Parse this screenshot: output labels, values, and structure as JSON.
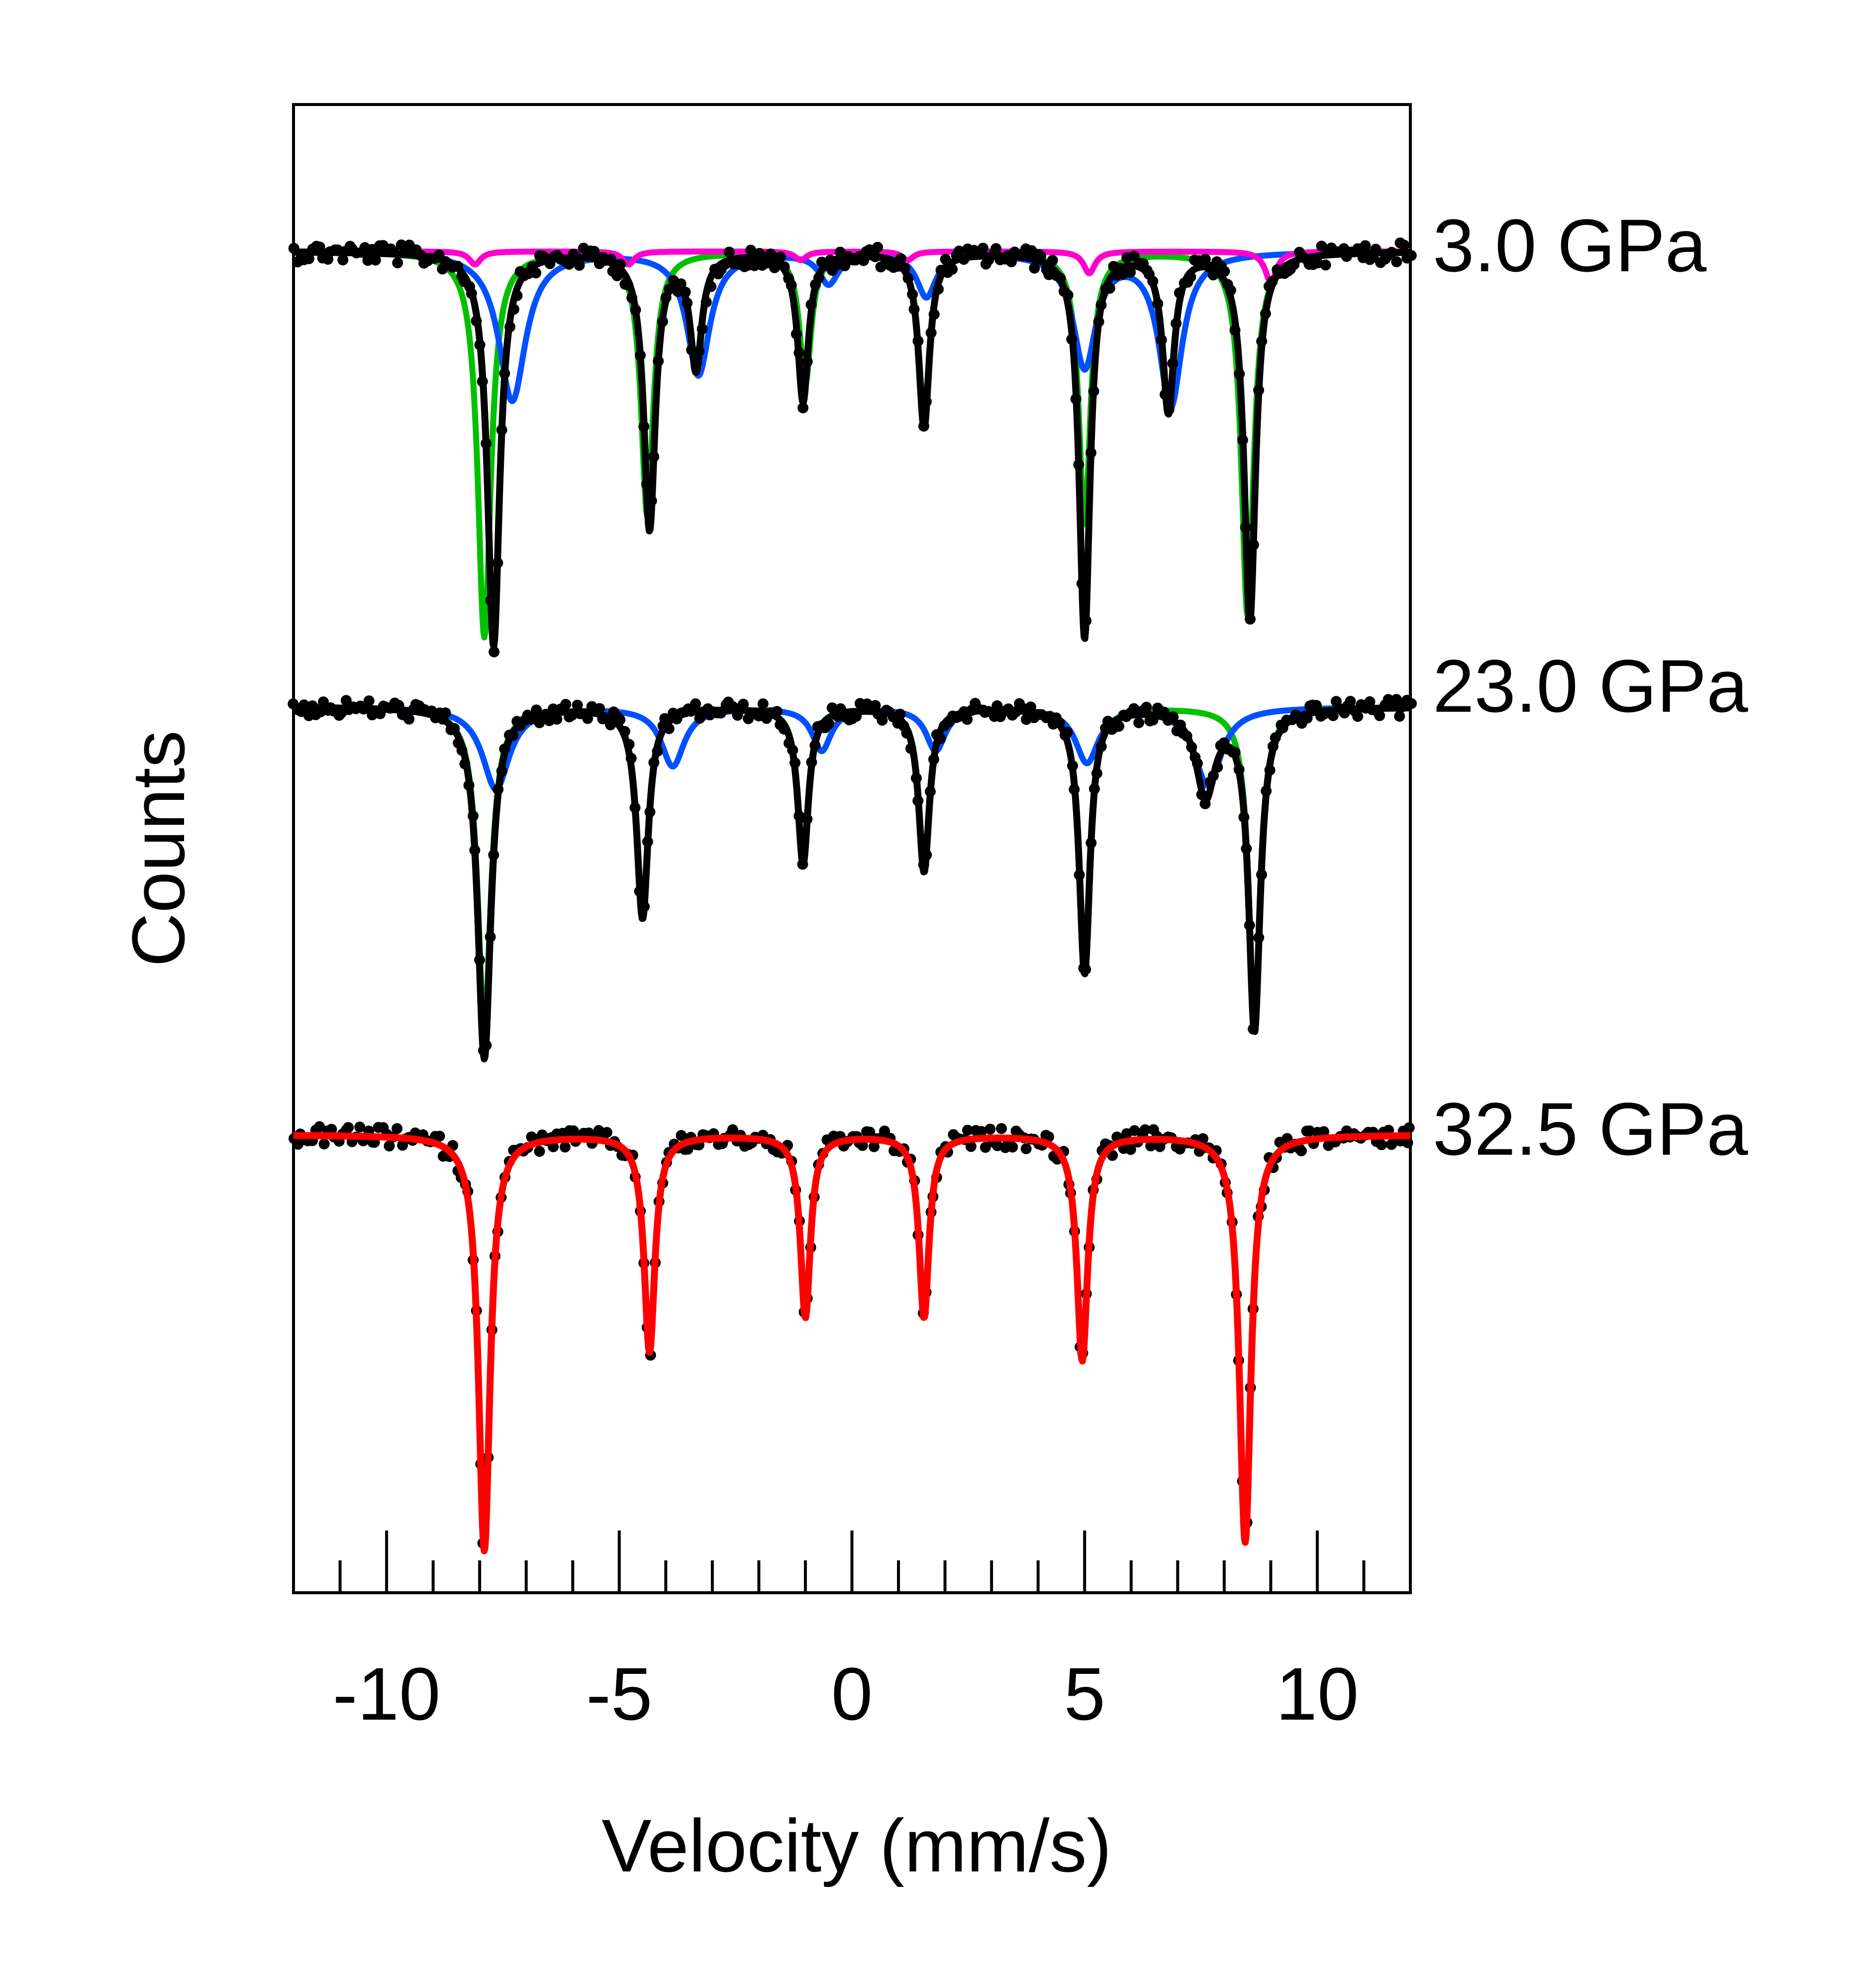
{
  "chart_data": {
    "type": "line",
    "xlabel": "Velocity (mm/s)",
    "ylabel": "Counts",
    "xlim": [
      -12,
      12
    ],
    "x_ticks": [
      -10,
      -5,
      0,
      5,
      10
    ],
    "x_tick_labels": [
      "-10",
      "-5",
      "0",
      "5",
      "10"
    ],
    "x_minor_tick_step": 1,
    "grid": false,
    "legend": "none",
    "y_tick_labels": "none",
    "panels": [
      {
        "label": "3.0 GPa",
        "baseline": 1.0,
        "data_color": "#000000",
        "total_fit": {
          "color": "#000000",
          "lines": [
            {
              "position": -7.7,
              "depth": 0.9,
              "width": 0.32
            },
            {
              "position": -4.35,
              "depth": 0.63,
              "width": 0.3
            },
            {
              "position": -1.05,
              "depth": 0.34,
              "width": 0.28
            },
            {
              "position": 1.55,
              "depth": 0.4,
              "width": 0.28
            },
            {
              "position": 5.0,
              "depth": 0.88,
              "width": 0.28
            },
            {
              "position": 8.55,
              "depth": 0.84,
              "width": 0.3
            },
            {
              "position": -3.35,
              "depth": 0.26,
              "width": 0.3
            },
            {
              "position": 6.8,
              "depth": 0.36,
              "width": 0.3
            }
          ]
        },
        "components": [
          {
            "color": "#00c000",
            "lines": [
              {
                "position": -7.9,
                "depth": 0.88,
                "width": 0.34
              },
              {
                "position": -4.4,
                "depth": 0.6,
                "width": 0.32
              },
              {
                "position": -1.0,
                "depth": 0.3,
                "width": 0.3
              },
              {
                "position": 1.55,
                "depth": 0.36,
                "width": 0.3
              },
              {
                "position": 5.0,
                "depth": 0.62,
                "width": 0.3
              },
              {
                "position": 8.5,
                "depth": 0.83,
                "width": 0.32
              }
            ]
          },
          {
            "color": "#0050ff",
            "lines": [
              {
                "position": -7.3,
                "depth": 0.34,
                "width": 0.7
              },
              {
                "position": -3.3,
                "depth": 0.28,
                "width": 0.6
              },
              {
                "position": -0.5,
                "depth": 0.07,
                "width": 0.5
              },
              {
                "position": 1.6,
                "depth": 0.1,
                "width": 0.5
              },
              {
                "position": 5.0,
                "depth": 0.26,
                "width": 0.6
              },
              {
                "position": 6.85,
                "depth": 0.35,
                "width": 0.6
              }
            ]
          },
          {
            "color": "#ff00cc",
            "lines": [
              {
                "position": -8.1,
                "depth": 0.03,
                "width": 0.3
              },
              {
                "position": -4.8,
                "depth": 0.03,
                "width": 0.3
              },
              {
                "position": -1.1,
                "depth": 0.02,
                "width": 0.3
              },
              {
                "position": 1.2,
                "depth": 0.02,
                "width": 0.3
              },
              {
                "position": 5.1,
                "depth": 0.05,
                "width": 0.3
              },
              {
                "position": 9.0,
                "depth": 0.07,
                "width": 0.3
              }
            ]
          }
        ]
      },
      {
        "label": "23.0 GPa",
        "baseline": 1.0,
        "data_color": "#000000",
        "total_fit": {
          "color": "#000000",
          "lines": [
            {
              "position": -7.9,
              "depth": 0.9,
              "width": 0.34
            },
            {
              "position": -4.5,
              "depth": 0.54,
              "width": 0.3
            },
            {
              "position": -1.05,
              "depth": 0.4,
              "width": 0.28
            },
            {
              "position": 1.55,
              "depth": 0.42,
              "width": 0.28
            },
            {
              "position": 5.0,
              "depth": 0.68,
              "width": 0.28
            },
            {
              "position": 8.65,
              "depth": 0.82,
              "width": 0.3
            },
            {
              "position": 7.6,
              "depth": 0.22,
              "width": 0.5
            }
          ]
        },
        "components": [
          {
            "color": "#00c000",
            "lines": [
              {
                "position": -7.9,
                "depth": 0.82,
                "width": 0.34
              },
              {
                "position": -4.5,
                "depth": 0.52,
                "width": 0.3
              },
              {
                "position": -1.05,
                "depth": 0.37,
                "width": 0.28
              },
              {
                "position": 1.55,
                "depth": 0.4,
                "width": 0.28
              },
              {
                "position": 5.0,
                "depth": 0.66,
                "width": 0.28
              },
              {
                "position": 8.65,
                "depth": 0.8,
                "width": 0.3
              }
            ]
          },
          {
            "color": "#0050ff",
            "lines": [
              {
                "position": -7.65,
                "depth": 0.21,
                "width": 0.7
              },
              {
                "position": -3.85,
                "depth": 0.15,
                "width": 0.6
              },
              {
                "position": -0.65,
                "depth": 0.11,
                "width": 0.5
              },
              {
                "position": 1.8,
                "depth": 0.11,
                "width": 0.5
              },
              {
                "position": 5.05,
                "depth": 0.14,
                "width": 0.6
              },
              {
                "position": 7.65,
                "depth": 0.2,
                "width": 0.7
              }
            ]
          }
        ]
      },
      {
        "label": "32.5 GPa",
        "baseline": 1.0,
        "data_color": "#000000",
        "total_fit": {
          "color": "#ff0000",
          "lines": [
            {
              "position": -7.9,
              "depth": 0.96,
              "width": 0.3
            },
            {
              "position": -4.35,
              "depth": 0.5,
              "width": 0.28
            },
            {
              "position": -1.0,
              "depth": 0.42,
              "width": 0.26
            },
            {
              "position": 1.55,
              "depth": 0.42,
              "width": 0.26
            },
            {
              "position": 4.95,
              "depth": 0.52,
              "width": 0.28
            },
            {
              "position": 8.45,
              "depth": 0.94,
              "width": 0.3
            }
          ]
        },
        "components": []
      }
    ]
  }
}
